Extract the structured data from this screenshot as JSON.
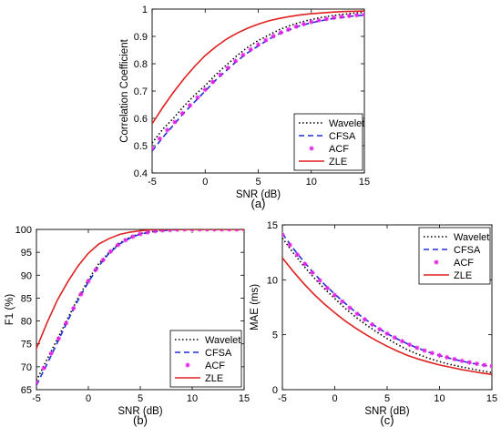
{
  "colors": {
    "Wavelet": "#000000",
    "CFSA": "#1f2fd6",
    "ACF": "#e61ee6",
    "ZLE": "#e02020"
  },
  "chart_data": [
    {
      "type": "line",
      "caption": "(a)",
      "xlabel": "SNR (dB)",
      "ylabel": "Correlation Coefficient",
      "xlim": [
        -5,
        15
      ],
      "ylim": [
        0.4,
        1.0
      ],
      "xticks": [
        "-5",
        "0",
        "5",
        "10",
        "15"
      ],
      "yticks": [
        "0.4",
        "0.5",
        "0.6",
        "0.7",
        "0.8",
        "0.9",
        "1"
      ],
      "legend_position": "bottom-right",
      "x": [
        -5,
        -4,
        -3,
        -2,
        -1,
        0,
        1,
        2,
        3,
        4,
        5,
        6,
        7,
        8,
        9,
        10,
        11,
        12,
        13,
        14,
        15
      ],
      "series": [
        {
          "name": "Wavelet",
          "style": "dotted",
          "values": [
            0.51,
            0.56,
            0.6,
            0.645,
            0.685,
            0.72,
            0.76,
            0.795,
            0.83,
            0.86,
            0.885,
            0.905,
            0.925,
            0.94,
            0.952,
            0.962,
            0.97,
            0.976,
            0.981,
            0.985,
            0.988
          ]
        },
        {
          "name": "CFSA",
          "style": "dashed",
          "values": [
            0.48,
            0.53,
            0.575,
            0.62,
            0.66,
            0.7,
            0.74,
            0.775,
            0.81,
            0.84,
            0.865,
            0.89,
            0.91,
            0.925,
            0.94,
            0.95,
            0.958,
            0.965,
            0.97,
            0.975,
            0.978
          ]
        },
        {
          "name": "ACF",
          "style": "markers",
          "values": [
            0.49,
            0.54,
            0.58,
            0.625,
            0.665,
            0.705,
            0.745,
            0.78,
            0.815,
            0.845,
            0.87,
            0.893,
            0.912,
            0.928,
            0.942,
            0.953,
            0.961,
            0.968,
            0.973,
            0.977,
            0.98
          ]
        },
        {
          "name": "ZLE",
          "style": "solid",
          "values": [
            0.58,
            0.64,
            0.695,
            0.745,
            0.79,
            0.83,
            0.862,
            0.89,
            0.912,
            0.93,
            0.945,
            0.957,
            0.966,
            0.973,
            0.979,
            0.983,
            0.986,
            0.989,
            0.991,
            0.992,
            0.993
          ]
        }
      ]
    },
    {
      "type": "line",
      "caption": "(b)",
      "xlabel": "SNR (dB)",
      "ylabel": "F1 (%)",
      "xlim": [
        -5,
        15
      ],
      "ylim": [
        65,
        100
      ],
      "xticks": [
        "-5",
        "0",
        "5",
        "10",
        "15"
      ],
      "yticks": [
        "65",
        "70",
        "75",
        "80",
        "85",
        "90",
        "95",
        "100"
      ],
      "legend_position": "bottom-right",
      "x": [
        -5,
        -4,
        -3,
        -2,
        -1,
        0,
        1,
        2,
        3,
        4,
        5,
        6,
        7,
        8,
        9,
        10,
        11,
        12,
        13,
        14,
        15
      ],
      "series": [
        {
          "name": "Wavelet",
          "style": "dotted",
          "values": [
            67.0,
            71.5,
            76.0,
            80.5,
            85.0,
            89.0,
            92.5,
            95.0,
            97.0,
            98.3,
            99.1,
            99.5,
            99.8,
            99.9,
            100,
            100,
            100,
            100,
            100,
            100,
            100
          ]
        },
        {
          "name": "CFSA",
          "style": "dashed",
          "values": [
            66.0,
            70.5,
            75.2,
            80.0,
            84.5,
            88.5,
            92.0,
            94.8,
            96.8,
            98.1,
            99.0,
            99.4,
            99.7,
            99.9,
            100,
            100,
            100,
            100,
            100,
            100,
            100
          ]
        },
        {
          "name": "ACF",
          "style": "markers",
          "values": [
            66.5,
            71.0,
            75.5,
            80.2,
            84.7,
            88.7,
            92.2,
            94.9,
            96.9,
            98.2,
            99.0,
            99.5,
            99.8,
            99.9,
            100,
            100,
            100,
            100,
            100,
            100,
            100
          ]
        },
        {
          "name": "ZLE",
          "style": "solid",
          "values": [
            74.0,
            79.5,
            84.5,
            88.5,
            92.0,
            94.8,
            96.8,
            98.0,
            98.9,
            99.4,
            99.7,
            99.9,
            100,
            100,
            100,
            100,
            100,
            100,
            100,
            100,
            100
          ]
        }
      ]
    },
    {
      "type": "line",
      "caption": "(c)",
      "xlabel": "SNR (dB)",
      "ylabel": "MAE (ms)",
      "xlim": [
        -5,
        15
      ],
      "ylim": [
        0,
        15
      ],
      "xticks": [
        "-5",
        "0",
        "5",
        "10",
        "15"
      ],
      "yticks": [
        "0",
        "5",
        "10",
        "15"
      ],
      "legend_position": "top-right",
      "x": [
        -5,
        -4,
        -3,
        -2,
        -1,
        0,
        1,
        2,
        3,
        4,
        5,
        6,
        7,
        8,
        9,
        10,
        11,
        12,
        13,
        14,
        15
      ],
      "series": [
        {
          "name": "Wavelet",
          "style": "dotted",
          "values": [
            13.8,
            12.5,
            11.3,
            10.2,
            9.2,
            8.3,
            7.4,
            6.6,
            5.9,
            5.25,
            4.65,
            4.1,
            3.6,
            3.2,
            2.85,
            2.55,
            2.3,
            2.1,
            1.9,
            1.72,
            1.55
          ]
        },
        {
          "name": "CFSA",
          "style": "dashed",
          "values": [
            14.2,
            12.9,
            11.7,
            10.6,
            9.6,
            8.7,
            7.85,
            7.05,
            6.35,
            5.7,
            5.1,
            4.6,
            4.15,
            3.75,
            3.4,
            3.1,
            2.85,
            2.62,
            2.42,
            2.25,
            2.1
          ]
        },
        {
          "name": "ACF",
          "style": "markers",
          "values": [
            14.1,
            12.8,
            11.6,
            10.5,
            9.5,
            8.6,
            7.8,
            7.0,
            6.3,
            5.65,
            5.1,
            4.6,
            4.15,
            3.75,
            3.42,
            3.12,
            2.88,
            2.65,
            2.45,
            2.28,
            2.15
          ]
        },
        {
          "name": "ZLE",
          "style": "solid",
          "values": [
            12.0,
            10.8,
            9.7,
            8.7,
            7.8,
            7.0,
            6.25,
            5.6,
            5.0,
            4.45,
            3.95,
            3.5,
            3.1,
            2.78,
            2.5,
            2.25,
            2.05,
            1.85,
            1.68,
            1.52,
            1.38
          ]
        }
      ]
    }
  ]
}
